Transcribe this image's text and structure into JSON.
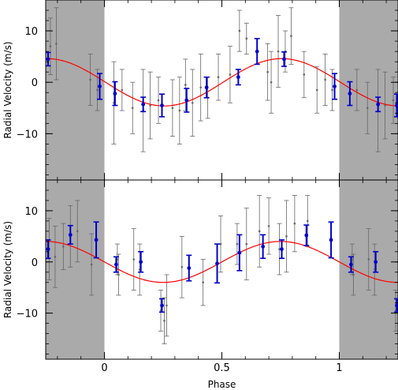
{
  "chart_data": [
    {
      "type": "scatter",
      "xlabel": "",
      "ylabel": "Radial Velocity (m/s)",
      "xlim": [
        -0.25,
        1.25
      ],
      "ylim": [
        -19,
        16
      ],
      "xticks": [
        0,
        0.5,
        1
      ],
      "xtick_labels": [
        "0",
        "0.5",
        "1"
      ],
      "yticks": [
        10,
        0,
        -10
      ],
      "ytick_labels": [
        "10",
        "0",
        "−10"
      ],
      "shaded_phase_ranges": [
        [
          -0.25,
          0
        ],
        [
          1,
          1.25
        ]
      ],
      "colors": {
        "model": "#ff0000",
        "binned": "#0000cc",
        "raw": "#666666",
        "shade": "#aaaaaa"
      },
      "model": {
        "amplitude": 4.6,
        "phase_of_max": 0.755
      },
      "raw_points": [
        {
          "x": -0.23,
          "y": 7.0,
          "err": 5.5
        },
        {
          "x": -0.205,
          "y": 7.5,
          "err": 7.0
        },
        {
          "x": -0.06,
          "y": 0.5,
          "err": 5.0
        },
        {
          "x": -0.03,
          "y": -1.5,
          "err": 4.0
        },
        {
          "x": 0.04,
          "y": -4.0,
          "err": 8.0
        },
        {
          "x": 0.075,
          "y": -1.5,
          "err": 4.0
        },
        {
          "x": 0.12,
          "y": -5.0,
          "err": 5.0
        },
        {
          "x": 0.165,
          "y": -5.5,
          "err": 8.0
        },
        {
          "x": 0.195,
          "y": -4.5,
          "err": 6.5
        },
        {
          "x": 0.23,
          "y": -3.5,
          "err": 4.5
        },
        {
          "x": 0.29,
          "y": -5.0,
          "err": 5.5
        },
        {
          "x": 0.32,
          "y": -5.5,
          "err": 6.5
        },
        {
          "x": 0.345,
          "y": -0.5,
          "err": 5.0
        },
        {
          "x": 0.375,
          "y": -4.0,
          "err": 6.5
        },
        {
          "x": 0.41,
          "y": -1.0,
          "err": 6.5
        },
        {
          "x": 0.44,
          "y": -3.0,
          "err": 4.0
        },
        {
          "x": 0.485,
          "y": 1.0,
          "err": 4.5
        },
        {
          "x": 0.535,
          "y": 1.5,
          "err": 5.5
        },
        {
          "x": 0.575,
          "y": 10.0,
          "err": 4.0
        },
        {
          "x": 0.605,
          "y": 8.5,
          "err": 3.0
        },
        {
          "x": 0.695,
          "y": 2.0,
          "err": 5.5
        },
        {
          "x": 0.71,
          "y": 0.0,
          "err": 6.0
        },
        {
          "x": 0.74,
          "y": 6.0,
          "err": 7.0
        },
        {
          "x": 0.77,
          "y": 6.0,
          "err": 4.0
        },
        {
          "x": 0.795,
          "y": 9.0,
          "err": 5.5
        },
        {
          "x": 0.85,
          "y": 1.5,
          "err": 4.5
        },
        {
          "x": 0.905,
          "y": -1.5,
          "err": 4.5
        },
        {
          "x": 0.94,
          "y": 0.5,
          "err": 5.0
        },
        {
          "x": 0.97,
          "y": -1.5,
          "err": 4.0
        },
        {
          "x": 1.075,
          "y": -1.5,
          "err": 4.0
        },
        {
          "x": 1.12,
          "y": -5.0,
          "err": 5.0
        },
        {
          "x": 1.165,
          "y": -5.5,
          "err": 8.0
        },
        {
          "x": 1.195,
          "y": -4.5,
          "err": 6.5
        },
        {
          "x": 1.23,
          "y": -3.5,
          "err": 4.5
        }
      ],
      "binned_points": [
        {
          "x": -0.24,
          "y": 4.5,
          "err": 1.3
        },
        {
          "x": -0.02,
          "y": -0.8,
          "err": 2.5
        },
        {
          "x": 0.045,
          "y": -2.2,
          "err": 2.3
        },
        {
          "x": 0.165,
          "y": -4.3,
          "err": 1.4
        },
        {
          "x": 0.245,
          "y": -4.5,
          "err": 2.2
        },
        {
          "x": 0.35,
          "y": -3.5,
          "err": 2.3
        },
        {
          "x": 0.435,
          "y": -1.0,
          "err": 2.0
        },
        {
          "x": 0.57,
          "y": 1.0,
          "err": 1.5
        },
        {
          "x": 0.65,
          "y": 6.0,
          "err": 2.5
        },
        {
          "x": 0.765,
          "y": 4.5,
          "err": 1.4
        },
        {
          "x": 0.98,
          "y": -0.8,
          "err": 2.5
        },
        {
          "x": 1.045,
          "y": -2.2,
          "err": 2.3
        },
        {
          "x": 1.165,
          "y": -4.3,
          "err": 1.4
        },
        {
          "x": 1.245,
          "y": -4.5,
          "err": 2.2
        }
      ]
    },
    {
      "type": "scatter",
      "xlabel": "Phase",
      "ylabel": "Radial Velocity (m/s)",
      "xlim": [
        -0.25,
        1.25
      ],
      "ylim": [
        -19,
        16
      ],
      "xticks": [
        0,
        0.5,
        1
      ],
      "xtick_labels": [
        "0",
        "0.5",
        "1"
      ],
      "yticks": [
        10,
        0,
        -10
      ],
      "ytick_labels": [
        "10",
        "0",
        "−10"
      ],
      "shaded_phase_ranges": [
        [
          -0.25,
          0
        ],
        [
          1,
          1.25
        ]
      ],
      "colors": {
        "model": "#ff0000",
        "binned": "#0000cc",
        "raw": "#666666",
        "shade": "#aaaaaa"
      },
      "model": {
        "amplitude": 4.0,
        "phase_of_max": 0.75
      },
      "raw_points": [
        {
          "x": -0.235,
          "y": 2.5,
          "err": 6.0
        },
        {
          "x": -0.21,
          "y": 1.0,
          "err": 6.0
        },
        {
          "x": -0.175,
          "y": 3.0,
          "err": 4.5
        },
        {
          "x": -0.145,
          "y": 5.0,
          "err": 6.0
        },
        {
          "x": -0.115,
          "y": 6.0,
          "err": 6.0
        },
        {
          "x": -0.055,
          "y": -0.5,
          "err": 6.0
        },
        {
          "x": 0.055,
          "y": 0.5,
          "err": 3.0
        },
        {
          "x": 0.06,
          "y": -2.5,
          "err": 4.0
        },
        {
          "x": 0.125,
          "y": 0.5,
          "err": 6.0
        },
        {
          "x": 0.15,
          "y": -1.5,
          "err": 5.0
        },
        {
          "x": 0.24,
          "y": -9.5,
          "err": 4.0
        },
        {
          "x": 0.255,
          "y": -11.5,
          "err": 4.5
        },
        {
          "x": 0.265,
          "y": -8.5,
          "err": 6.0
        },
        {
          "x": 0.33,
          "y": -1.0,
          "err": 6.0
        },
        {
          "x": 0.42,
          "y": -4.0,
          "err": 4.5
        },
        {
          "x": 0.495,
          "y": 3.5,
          "err": 5.5
        },
        {
          "x": 0.565,
          "y": 3.5,
          "err": 4.0
        },
        {
          "x": 0.605,
          "y": 3.5,
          "err": 7.0
        },
        {
          "x": 0.66,
          "y": 6.0,
          "err": 7.0
        },
        {
          "x": 0.7,
          "y": 7.0,
          "err": 5.5
        },
        {
          "x": 0.745,
          "y": 2.5,
          "err": 5.0
        },
        {
          "x": 0.775,
          "y": 5.0,
          "err": 7.0
        },
        {
          "x": 0.81,
          "y": 7.5,
          "err": 5.5
        },
        {
          "x": 0.865,
          "y": 8.0,
          "err": 5.0
        },
        {
          "x": 1.055,
          "y": 0.5,
          "err": 3.0
        },
        {
          "x": 1.06,
          "y": -2.5,
          "err": 4.0
        },
        {
          "x": 1.125,
          "y": 0.5,
          "err": 6.0
        },
        {
          "x": 1.15,
          "y": -1.5,
          "err": 5.0
        },
        {
          "x": 1.24,
          "y": -9.5,
          "err": 4.0
        }
      ],
      "binned_points": [
        {
          "x": -0.24,
          "y": 2.5,
          "err": 1.8
        },
        {
          "x": -0.145,
          "y": 5.3,
          "err": 1.8
        },
        {
          "x": -0.035,
          "y": 4.3,
          "err": 3.5
        },
        {
          "x": 0.05,
          "y": -0.5,
          "err": 1.5
        },
        {
          "x": 0.155,
          "y": 0.0,
          "err": 2.0
        },
        {
          "x": 0.245,
          "y": -8.5,
          "err": 1.3
        },
        {
          "x": 0.36,
          "y": -1.2,
          "err": 2.5
        },
        {
          "x": 0.48,
          "y": -0.3,
          "err": 3.8
        },
        {
          "x": 0.575,
          "y": 1.8,
          "err": 3.5
        },
        {
          "x": 0.675,
          "y": 3.0,
          "err": 2.3
        },
        {
          "x": 0.755,
          "y": 2.5,
          "err": 1.8
        },
        {
          "x": 0.86,
          "y": 5.2,
          "err": 2.0
        },
        {
          "x": 0.965,
          "y": 4.3,
          "err": 3.5
        },
        {
          "x": 1.05,
          "y": -0.5,
          "err": 1.5
        },
        {
          "x": 1.155,
          "y": 0.0,
          "err": 2.0
        },
        {
          "x": 1.245,
          "y": -8.5,
          "err": 1.3
        }
      ]
    }
  ]
}
